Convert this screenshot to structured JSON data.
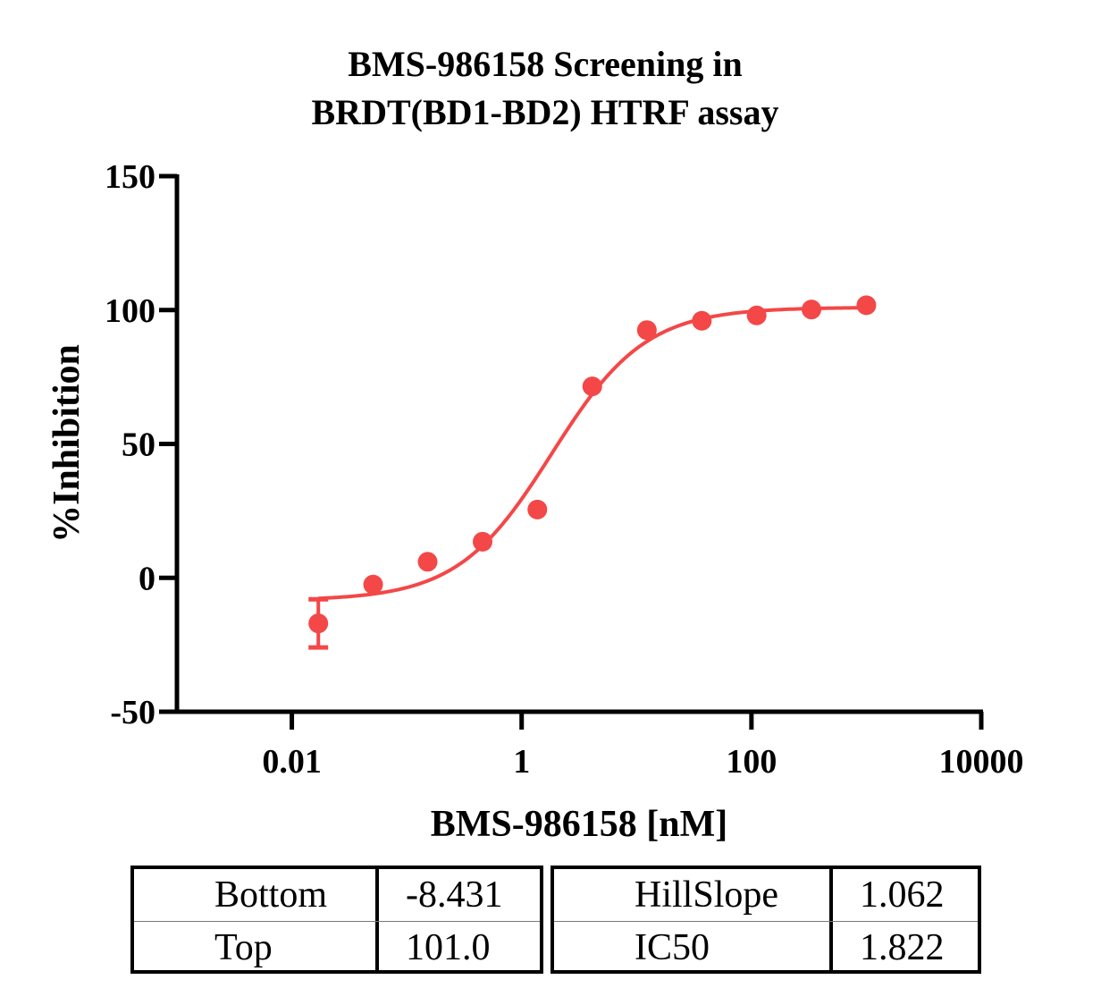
{
  "chart_data": {
    "type": "scatter",
    "title_lines": [
      "BMS-986158 Screening in",
      "BRDT(BD1-BD2) HTRF assay"
    ],
    "xlabel": "BMS-986158 [nM]",
    "ylabel": "%Inhibition",
    "x_scale": "log",
    "xlim": [
      0.001,
      10000
    ],
    "ylim": [
      -50,
      150
    ],
    "x_ticks": [
      0.01,
      1,
      100,
      10000
    ],
    "x_tick_labels": [
      "0.01",
      "1",
      "100",
      "10000"
    ],
    "y_ticks": [
      -50,
      0,
      50,
      100,
      150
    ],
    "y_tick_labels": [
      "-50",
      "0",
      "50",
      "100",
      "150"
    ],
    "color": "#f44747",
    "points": [
      {
        "x": 0.017,
        "y": -17,
        "err": 9
      },
      {
        "x": 0.051,
        "y": -2.5
      },
      {
        "x": 0.152,
        "y": 6
      },
      {
        "x": 0.457,
        "y": 13.5
      },
      {
        "x": 1.37,
        "y": 25.5
      },
      {
        "x": 4.12,
        "y": 71.5
      },
      {
        "x": 12.3,
        "y": 92.5
      },
      {
        "x": 37.0,
        "y": 96
      },
      {
        "x": 111,
        "y": 98
      },
      {
        "x": 333,
        "y": 100.2
      },
      {
        "x": 1000,
        "y": 101.8
      }
    ],
    "fit": {
      "model": "4PL",
      "bottom": -8.431,
      "top": 101.0,
      "hill_slope": 1.062,
      "ic50": 1.822,
      "x_range": [
        0.017,
        1000
      ]
    },
    "grid": false,
    "legend": "none"
  },
  "stats": {
    "left": [
      {
        "label": "Bottom",
        "value": "-8.431"
      },
      {
        "label": "Top",
        "value": "101.0"
      }
    ],
    "right": [
      {
        "label": "HillSlope",
        "value": "1.062"
      },
      {
        "label": "IC50",
        "value": "1.822"
      }
    ]
  }
}
